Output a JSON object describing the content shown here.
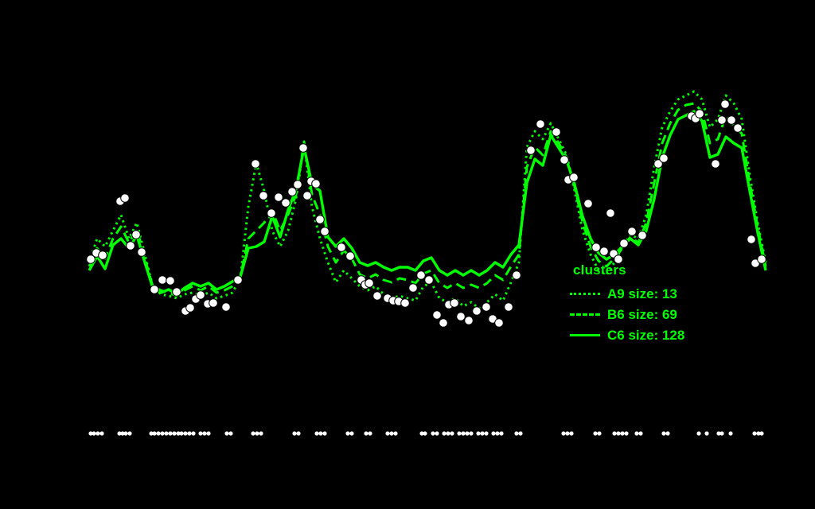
{
  "chart_data": {
    "type": "line",
    "title": "",
    "background_color": "#000000",
    "line_color": "#00FF00",
    "point_color": "#FFFFFF",
    "point_outline_color": "#000000",
    "axes_visible": false,
    "coordinate_units": "screen pixels (no axis tick labels visible)",
    "legend": {
      "title": "clusters",
      "position": "right-middle",
      "entries": [
        {
          "label": "A9 size: 13",
          "style": "dotted"
        },
        {
          "label": "B6 size: 69",
          "style": "dashed"
        },
        {
          "label": "C6 size: 128",
          "style": "solid"
        }
      ]
    },
    "x_start": 112,
    "x_step": 10,
    "series": [
      {
        "name": "A9",
        "size": 13,
        "style": "dotted",
        "y_values": [
          330,
          300,
          310,
          290,
          270,
          300,
          280,
          320,
          360,
          370,
          372,
          375,
          370,
          368,
          372,
          368,
          375,
          372,
          368,
          350,
          260,
          205,
          240,
          290,
          310,
          290,
          250,
          180,
          260,
          300,
          330,
          355,
          340,
          350,
          360,
          365,
          360,
          370,
          375,
          372,
          375,
          378,
          360,
          355,
          375,
          380,
          375,
          385,
          380,
          388,
          380,
          370,
          378,
          355,
          330,
          185,
          165,
          175,
          155,
          175,
          195,
          240,
          290,
          320,
          340,
          345,
          330,
          310,
          295,
          300,
          270,
          210,
          160,
          140,
          125,
          120,
          115,
          125,
          160,
          150,
          120,
          130,
          150,
          220,
          280,
          330
        ]
      },
      {
        "name": "B6",
        "size": 69,
        "style": "dashed",
        "y_values": [
          335,
          312,
          325,
          300,
          285,
          305,
          288,
          325,
          360,
          365,
          368,
          372,
          365,
          360,
          365,
          360,
          368,
          365,
          360,
          348,
          300,
          290,
          280,
          265,
          290,
          270,
          245,
          178,
          245,
          270,
          310,
          330,
          315,
          325,
          345,
          350,
          345,
          352,
          355,
          350,
          352,
          356,
          344,
          340,
          356,
          362,
          356,
          362,
          358,
          362,
          356,
          346,
          352,
          335,
          320,
          210,
          185,
          195,
          165,
          180,
          198,
          235,
          280,
          310,
          328,
          335,
          325,
          312,
          298,
          305,
          280,
          230,
          180,
          155,
          138,
          132,
          130,
          140,
          180,
          175,
          145,
          158,
          168,
          230,
          285,
          335
        ]
      },
      {
        "name": "C6",
        "size": 128,
        "style": "solid",
        "y_values": [
          340,
          322,
          338,
          308,
          300,
          312,
          296,
          330,
          362,
          368,
          364,
          370,
          362,
          356,
          360,
          356,
          364,
          360,
          354,
          348,
          312,
          310,
          304,
          272,
          298,
          264,
          238,
          185,
          232,
          240,
          298,
          310,
          300,
          312,
          330,
          334,
          330,
          336,
          340,
          336,
          336,
          340,
          328,
          324,
          340,
          346,
          340,
          346,
          340,
          346,
          340,
          330,
          336,
          320,
          308,
          230,
          200,
          208,
          170,
          186,
          202,
          232,
          272,
          300,
          318,
          326,
          320,
          310,
          300,
          308,
          290,
          250,
          198,
          170,
          150,
          145,
          140,
          152,
          198,
          194,
          172,
          180,
          186,
          240,
          292,
          340
        ]
      }
    ],
    "scatter_points": [
      [
        114,
        326
      ],
      [
        121,
        318
      ],
      [
        129,
        321
      ],
      [
        151,
        253
      ],
      [
        157,
        249
      ],
      [
        164,
        309
      ],
      [
        171,
        295
      ],
      [
        178,
        317
      ],
      [
        194,
        364
      ],
      [
        204,
        352
      ],
      [
        214,
        353
      ],
      [
        222,
        367
      ],
      [
        233,
        391
      ],
      [
        239,
        387
      ],
      [
        246,
        376
      ],
      [
        252,
        371
      ],
      [
        261,
        382
      ],
      [
        268,
        381
      ],
      [
        284,
        386
      ],
      [
        299,
        352
      ],
      [
        321,
        206
      ],
      [
        331,
        246
      ],
      [
        341,
        268
      ],
      [
        350,
        248
      ],
      [
        359,
        255
      ],
      [
        367,
        241
      ],
      [
        374,
        232
      ],
      [
        381,
        186
      ],
      [
        386,
        246
      ],
      [
        391,
        228
      ],
      [
        397,
        231
      ],
      [
        402,
        276
      ],
      [
        408,
        291
      ],
      [
        429,
        311
      ],
      [
        440,
        322
      ],
      [
        454,
        352
      ],
      [
        459,
        358
      ],
      [
        464,
        356
      ],
      [
        474,
        372
      ],
      [
        487,
        375
      ],
      [
        494,
        378
      ],
      [
        501,
        379
      ],
      [
        509,
        381
      ],
      [
        519,
        362
      ],
      [
        529,
        346
      ],
      [
        539,
        352
      ],
      [
        549,
        396
      ],
      [
        557,
        406
      ],
      [
        564,
        383
      ],
      [
        571,
        381
      ],
      [
        579,
        398
      ],
      [
        589,
        403
      ],
      [
        599,
        391
      ],
      [
        611,
        386
      ],
      [
        619,
        401
      ],
      [
        627,
        406
      ],
      [
        639,
        386
      ],
      [
        649,
        346
      ],
      [
        667,
        189
      ],
      [
        679,
        156
      ],
      [
        699,
        166
      ],
      [
        709,
        201
      ],
      [
        714,
        226
      ],
      [
        721,
        223
      ],
      [
        739,
        256
      ],
      [
        749,
        311
      ],
      [
        759,
        316
      ],
      [
        767,
        268
      ],
      [
        771,
        319
      ],
      [
        777,
        326
      ],
      [
        784,
        306
      ],
      [
        794,
        291
      ],
      [
        807,
        296
      ],
      [
        827,
        206
      ],
      [
        834,
        199
      ],
      [
        869,
        146
      ],
      [
        874,
        149
      ],
      [
        879,
        143
      ],
      [
        899,
        206
      ],
      [
        907,
        151
      ],
      [
        911,
        131
      ],
      [
        919,
        151
      ],
      [
        927,
        161
      ],
      [
        944,
        301
      ],
      [
        949,
        331
      ],
      [
        957,
        326
      ]
    ],
    "rug_y": 545,
    "rug_points_x": [
      114,
      118,
      123,
      128,
      150,
      154,
      158,
      163,
      190,
      194,
      199,
      204,
      209,
      214,
      219,
      224,
      228,
      233,
      238,
      243,
      252,
      257,
      262,
      285,
      290,
      318,
      323,
      328,
      370,
      375,
      398,
      403,
      408,
      437,
      442,
      460,
      465,
      487,
      492,
      497,
      530,
      534,
      544,
      549,
      558,
      563,
      568,
      577,
      582,
      587,
      592,
      601,
      606,
      611,
      620,
      625,
      630,
      649,
      654,
      708,
      713,
      718,
      748,
      753,
      772,
      777,
      782,
      787,
      800,
      805,
      834,
      839,
      878,
      888,
      903,
      907,
      918,
      948,
      953,
      957
    ]
  }
}
